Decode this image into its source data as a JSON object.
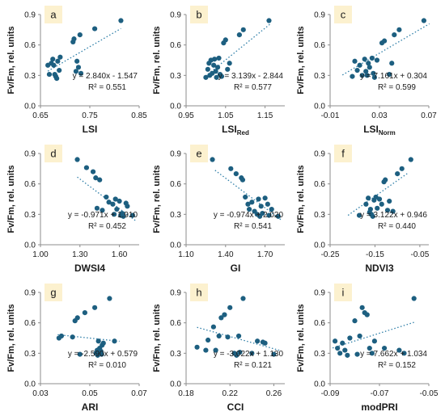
{
  "chart_data": [
    {
      "type": "scatter",
      "panel_label": "a",
      "xlabel": "LSI",
      "xlabel_sub": "",
      "ylabel": "Fv/Fm, rel. units",
      "xlim": [
        0.65,
        0.85
      ],
      "ylim": [
        0.0,
        0.9
      ],
      "xticks": [
        "0.65",
        "0.75",
        "0.85"
      ],
      "yticks": [
        "0.0",
        "0.3",
        "0.6",
        "0.9"
      ],
      "points": [
        [
          0.665,
          0.4
        ],
        [
          0.668,
          0.31
        ],
        [
          0.672,
          0.42
        ],
        [
          0.675,
          0.46
        ],
        [
          0.677,
          0.4
        ],
        [
          0.679,
          0.31
        ],
        [
          0.681,
          0.29
        ],
        [
          0.683,
          0.27
        ],
        [
          0.685,
          0.44
        ],
        [
          0.688,
          0.35
        ],
        [
          0.69,
          0.48
        ],
        [
          0.716,
          0.63
        ],
        [
          0.718,
          0.66
        ],
        [
          0.722,
          0.34
        ],
        [
          0.724,
          0.44
        ],
        [
          0.727,
          0.38
        ],
        [
          0.73,
          0.7
        ],
        [
          0.732,
          0.32
        ],
        [
          0.76,
          0.76
        ],
        [
          0.813,
          0.84
        ]
      ],
      "trend": {
        "slope": 2.84,
        "intercept": -1.547,
        "x_range": [
          0.665,
          0.813
        ]
      },
      "equation": "y = 2.840x - 1.547",
      "r2": "R² = 0.551"
    },
    {
      "type": "scatter",
      "panel_label": "b",
      "xlabel": "LSI",
      "xlabel_sub": "Red",
      "ylabel": "Fv/Fm, rel. units",
      "xlim": [
        0.95,
        1.2
      ],
      "ylim": [
        0.0,
        0.9
      ],
      "xticks": [
        "0.95",
        "1.05",
        "1.15"
      ],
      "yticks": [
        "0.0",
        "0.3",
        "0.6",
        "0.9"
      ],
      "points": [
        [
          1.0,
          0.28
        ],
        [
          1.005,
          0.36
        ],
        [
          1.008,
          0.42
        ],
        [
          1.01,
          0.3
        ],
        [
          1.013,
          0.45
        ],
        [
          1.016,
          0.32
        ],
        [
          1.02,
          0.4
        ],
        [
          1.022,
          0.46
        ],
        [
          1.025,
          0.34
        ],
        [
          1.027,
          0.28
        ],
        [
          1.03,
          0.38
        ],
        [
          1.033,
          0.47
        ],
        [
          1.036,
          0.31
        ],
        [
          1.04,
          0.29
        ],
        [
          1.045,
          0.62
        ],
        [
          1.05,
          0.65
        ],
        [
          1.055,
          0.36
        ],
        [
          1.06,
          0.42
        ],
        [
          1.085,
          0.7
        ],
        [
          1.095,
          0.75
        ],
        [
          1.16,
          0.84
        ]
      ],
      "trend": {
        "slope": 3.139,
        "intercept": -2.844,
        "x_range": [
          1.0,
          1.163
        ]
      },
      "equation": "y = 3.139x - 2.844",
      "r2": "R² = 0.577"
    },
    {
      "type": "scatter",
      "panel_label": "c",
      "xlabel": "LSI",
      "xlabel_sub": "Norm",
      "ylabel": "Fv/Fm, rel. units",
      "xlim": [
        -0.01,
        0.07
      ],
      "ylim": [
        0.0,
        0.9
      ],
      "xticks": [
        "-0.01",
        "0.03",
        "0.07"
      ],
      "yticks": [
        "0.0",
        "0.3",
        "0.6",
        "0.9"
      ],
      "points": [
        [
          0.008,
          0.29
        ],
        [
          0.01,
          0.44
        ],
        [
          0.012,
          0.35
        ],
        [
          0.014,
          0.4
        ],
        [
          0.016,
          0.3
        ],
        [
          0.018,
          0.46
        ],
        [
          0.019,
          0.34
        ],
        [
          0.02,
          0.3
        ],
        [
          0.021,
          0.42
        ],
        [
          0.022,
          0.38
        ],
        [
          0.024,
          0.47
        ],
        [
          0.025,
          0.32
        ],
        [
          0.026,
          0.28
        ],
        [
          0.028,
          0.45
        ],
        [
          0.032,
          0.62
        ],
        [
          0.034,
          0.64
        ],
        [
          0.038,
          0.31
        ],
        [
          0.04,
          0.42
        ],
        [
          0.042,
          0.7
        ],
        [
          0.046,
          0.75
        ],
        [
          0.066,
          0.84
        ]
      ],
      "trend": {
        "slope": 7.161,
        "intercept": 0.304,
        "x_range": [
          0.0,
          0.0705
        ]
      },
      "equation": "y = 7.161x + 0.304",
      "r2": "R² = 0.599"
    },
    {
      "type": "scatter",
      "panel_label": "d",
      "xlabel": "DWSI4",
      "xlabel_sub": "",
      "ylabel": "Fv/Fm, rel. units",
      "xlim": [
        1.0,
        1.75
      ],
      "ylim": [
        0.0,
        0.9
      ],
      "xticks": [
        "1.00",
        "1.30",
        "1.60"
      ],
      "yticks": [
        "0.0",
        "0.3",
        "0.6",
        "0.9"
      ],
      "points": [
        [
          1.28,
          0.84
        ],
        [
          1.35,
          0.76
        ],
        [
          1.4,
          0.72
        ],
        [
          1.42,
          0.66
        ],
        [
          1.45,
          0.64
        ],
        [
          1.43,
          0.36
        ],
        [
          1.47,
          0.34
        ],
        [
          1.5,
          0.47
        ],
        [
          1.52,
          0.42
        ],
        [
          1.55,
          0.4
        ],
        [
          1.56,
          0.3
        ],
        [
          1.58,
          0.35
        ],
        [
          1.6,
          0.43
        ],
        [
          1.61,
          0.29
        ],
        [
          1.62,
          0.31
        ],
        [
          1.63,
          0.28
        ],
        [
          1.65,
          0.41
        ],
        [
          1.66,
          0.38
        ],
        [
          1.7,
          0.29
        ],
        [
          1.57,
          0.45
        ]
      ],
      "trend": {
        "slope": -0.971,
        "intercept": 1.91,
        "x_range": [
          1.28,
          1.72
        ]
      },
      "equation": "y = -0.971x + 1.910",
      "r2": "R² = 0.452"
    },
    {
      "type": "scatter",
      "panel_label": "e",
      "xlabel": "GI",
      "xlabel_sub": "",
      "ylabel": "Fv/Fm, rel. units",
      "xlim": [
        1.1,
        1.85
      ],
      "ylim": [
        0.0,
        0.9
      ],
      "xticks": [
        "1.10",
        "1.40",
        "1.70"
      ],
      "yticks": [
        "0.0",
        "0.3",
        "0.6",
        "0.9"
      ],
      "points": [
        [
          1.3,
          0.84
        ],
        [
          1.44,
          0.75
        ],
        [
          1.48,
          0.7
        ],
        [
          1.52,
          0.66
        ],
        [
          1.53,
          0.64
        ],
        [
          1.55,
          0.47
        ],
        [
          1.57,
          0.4
        ],
        [
          1.58,
          0.35
        ],
        [
          1.6,
          0.42
        ],
        [
          1.62,
          0.33
        ],
        [
          1.64,
          0.3
        ],
        [
          1.65,
          0.45
        ],
        [
          1.66,
          0.28
        ],
        [
          1.68,
          0.31
        ],
        [
          1.7,
          0.46
        ],
        [
          1.72,
          0.4
        ],
        [
          1.73,
          0.29
        ],
        [
          1.75,
          0.35
        ],
        [
          1.8,
          0.28
        ],
        [
          1.67,
          0.38
        ]
      ],
      "trend": {
        "slope": -0.974,
        "intercept": 2.02,
        "x_range": [
          1.32,
          1.82
        ]
      },
      "equation": "y = -0.974x + 2.020",
      "r2": "R² = 0.541"
    },
    {
      "type": "scatter",
      "panel_label": "f",
      "xlabel": "NDVI3",
      "xlabel_sub": "",
      "ylabel": "Fv/Fm, rel. units",
      "xlim": [
        -0.25,
        -0.03
      ],
      "ylim": [
        0.0,
        0.9
      ],
      "xticks": [
        "-0.25",
        "-0.15",
        "-0.05"
      ],
      "yticks": [
        "0.0",
        "0.3",
        "0.6",
        "0.9"
      ],
      "points": [
        [
          -0.185,
          0.29
        ],
        [
          -0.17,
          0.4
        ],
        [
          -0.165,
          0.46
        ],
        [
          -0.162,
          0.32
        ],
        [
          -0.158,
          0.3
        ],
        [
          -0.155,
          0.28
        ],
        [
          -0.152,
          0.44
        ],
        [
          -0.148,
          0.47
        ],
        [
          -0.145,
          0.36
        ],
        [
          -0.14,
          0.45
        ],
        [
          -0.135,
          0.4
        ],
        [
          -0.13,
          0.62
        ],
        [
          -0.127,
          0.64
        ],
        [
          -0.122,
          0.34
        ],
        [
          -0.118,
          0.43
        ],
        [
          -0.11,
          0.33
        ],
        [
          -0.1,
          0.7
        ],
        [
          -0.09,
          0.75
        ],
        [
          -0.07,
          0.84
        ],
        [
          -0.16,
          0.35
        ]
      ],
      "trend": {
        "slope": 3.122,
        "intercept": 0.946,
        "x_range": [
          -0.21,
          -0.075
        ]
      },
      "equation": "y = 3.122x + 0.946",
      "r2": "R² = 0.440"
    },
    {
      "type": "scatter",
      "panel_label": "g",
      "xlabel": "ARI",
      "xlabel_sub": "",
      "ylabel": "Fv/Fm, rel. units",
      "xlim": [
        0.03,
        0.07
      ],
      "ylim": [
        0.0,
        0.9
      ],
      "xticks": [
        "0.03",
        "0.05",
        "0.07"
      ],
      "yticks": [
        "0.0",
        "0.3",
        "0.6",
        "0.9"
      ],
      "points": [
        [
          0.0375,
          0.45
        ],
        [
          0.0385,
          0.47
        ],
        [
          0.043,
          0.46
        ],
        [
          0.044,
          0.62
        ],
        [
          0.045,
          0.65
        ],
        [
          0.046,
          0.29
        ],
        [
          0.048,
          0.7
        ],
        [
          0.052,
          0.75
        ],
        [
          0.0525,
          0.3
        ],
        [
          0.053,
          0.33
        ],
        [
          0.0532,
          0.28
        ],
        [
          0.0535,
          0.42
        ],
        [
          0.054,
          0.35
        ],
        [
          0.0545,
          0.32
        ],
        [
          0.0548,
          0.29
        ],
        [
          0.055,
          0.38
        ],
        [
          0.0555,
          0.4
        ],
        [
          0.058,
          0.84
        ],
        [
          0.06,
          0.42
        ],
        [
          0.0538,
          0.3
        ]
      ],
      "trend": {
        "slope": -2.59,
        "intercept": 0.579,
        "x_range": [
          0.037,
          0.062
        ]
      },
      "equation": "y = -2.590x + 0.579",
      "r2": "R² = 0.010"
    },
    {
      "type": "scatter",
      "panel_label": "h",
      "xlabel": "CCI",
      "xlabel_sub": "",
      "ylabel": "Fv/Fm, rel. units",
      "xlim": [
        0.18,
        0.27
      ],
      "ylim": [
        0.0,
        0.9
      ],
      "xticks": [
        "0.18",
        "0.22",
        "0.26"
      ],
      "yticks": [
        "0.0",
        "0.3",
        "0.6",
        "0.9"
      ],
      "points": [
        [
          0.19,
          0.36
        ],
        [
          0.198,
          0.33
        ],
        [
          0.2,
          0.43
        ],
        [
          0.205,
          0.56
        ],
        [
          0.207,
          0.33
        ],
        [
          0.21,
          0.47
        ],
        [
          0.212,
          0.65
        ],
        [
          0.215,
          0.68
        ],
        [
          0.22,
          0.75
        ],
        [
          0.224,
          0.3
        ],
        [
          0.226,
          0.28
        ],
        [
          0.228,
          0.47
        ],
        [
          0.229,
          0.31
        ],
        [
          0.232,
          0.84
        ],
        [
          0.24,
          0.3
        ],
        [
          0.245,
          0.42
        ],
        [
          0.25,
          0.41
        ],
        [
          0.252,
          0.4
        ],
        [
          0.26,
          0.29
        ],
        [
          0.218,
          0.46
        ]
      ],
      "trend": {
        "slope": -3.022,
        "intercept": 1.13,
        "x_range": [
          0.19,
          0.265
        ]
      },
      "equation": "y = -3.022x + 1.130",
      "r2": "R² = 0.121"
    },
    {
      "type": "scatter",
      "panel_label": "i",
      "xlabel": "modPRI",
      "xlabel_sub": "",
      "ylabel": "Fv/Fm, rel. units",
      "xlim": [
        -0.09,
        -0.05
      ],
      "ylim": [
        0.0,
        0.9
      ],
      "xticks": [
        "-0.09",
        "-0.07",
        "-0.05"
      ],
      "yticks": [
        "0.0",
        "0.3",
        "0.6",
        "0.9"
      ],
      "points": [
        [
          -0.088,
          0.42
        ],
        [
          -0.087,
          0.35
        ],
        [
          -0.086,
          0.3
        ],
        [
          -0.085,
          0.4
        ],
        [
          -0.084,
          0.33
        ],
        [
          -0.083,
          0.28
        ],
        [
          -0.082,
          0.45
        ],
        [
          -0.08,
          0.62
        ],
        [
          -0.079,
          0.29
        ],
        [
          -0.078,
          0.47
        ],
        [
          -0.077,
          0.75
        ],
        [
          -0.076,
          0.7
        ],
        [
          -0.075,
          0.68
        ],
        [
          -0.074,
          0.35
        ],
        [
          -0.073,
          0.3
        ],
        [
          -0.072,
          0.42
        ],
        [
          -0.068,
          0.35
        ],
        [
          -0.062,
          0.33
        ],
        [
          -0.06,
          0.3
        ],
        [
          -0.056,
          0.84
        ]
      ],
      "trend": {
        "slope": 7.662,
        "intercept": 1.034,
        "x_range": [
          -0.089,
          -0.056
        ]
      },
      "equation": "y = 7.662x + 1.034",
      "r2": "R² = 0.152"
    }
  ],
  "colors": {
    "point": "#1d5f80",
    "trend": "#2f7fa8",
    "label_bg": "#fcf1cf",
    "axis": "#8c8c8c",
    "text": "#1a1a1a"
  }
}
